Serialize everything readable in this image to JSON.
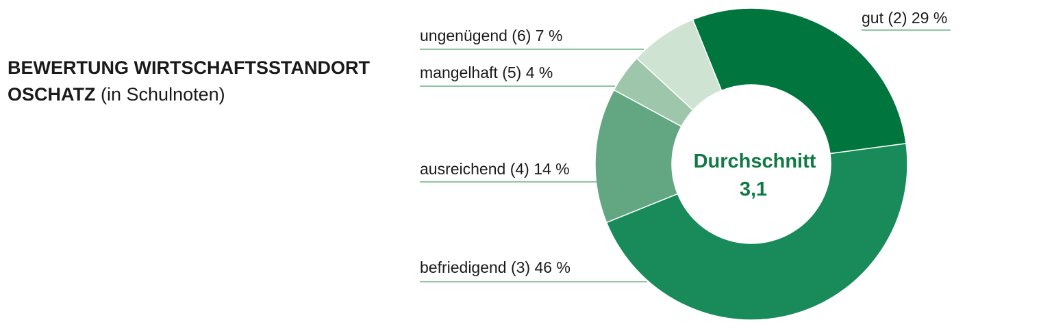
{
  "chart_data": {
    "type": "pie",
    "title_line1": "BEWERTUNG WIRTSCHAFTSSTANDORT",
    "title_line2": "OSCHATZ",
    "title_note": "(in Schulnoten)",
    "center_label": "Durchschnitt",
    "center_value": "3,1",
    "slices": [
      {
        "label": "gut (2) 29 %",
        "value": 29,
        "color": "#00753d"
      },
      {
        "label": "befriedigend (3) 46 %",
        "value": 46,
        "color": "#198a5a"
      },
      {
        "label": "ausreichend (4) 14 %",
        "value": 14,
        "color": "#62a781"
      },
      {
        "label": "mangelhaft (5) 4 %",
        "value": 4,
        "color": "#9dc6aa"
      },
      {
        "label": "ungenügend (6) 7 %",
        "value": 7,
        "color": "#cfe3d3"
      }
    ],
    "leader_color": "#4fa16e"
  }
}
